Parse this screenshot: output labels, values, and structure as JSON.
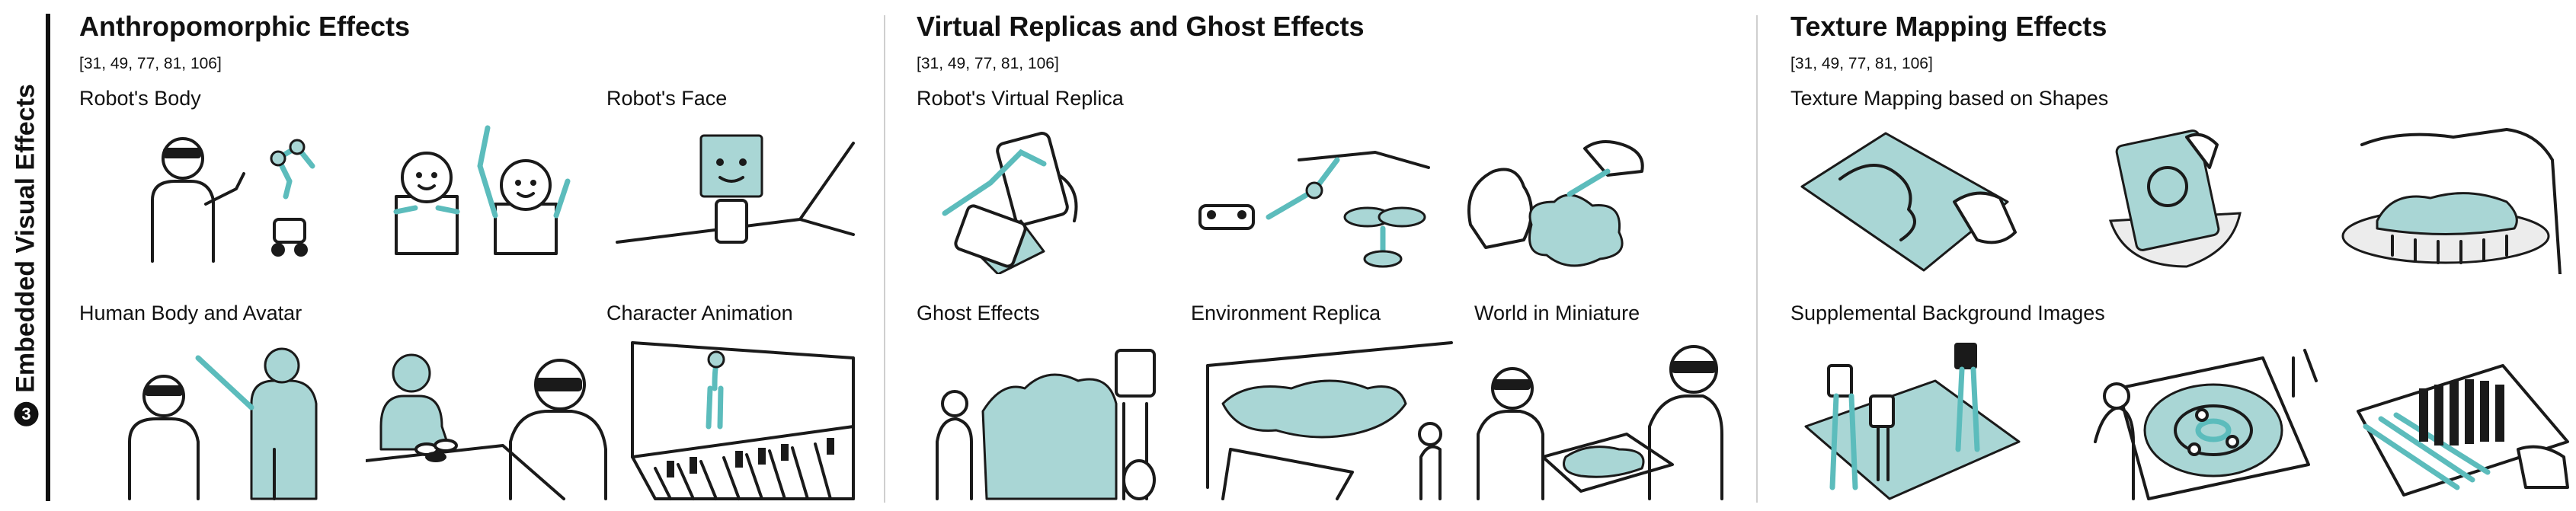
{
  "side_label": {
    "number": "3",
    "text": "Embedded Visual Effects"
  },
  "sections": [
    {
      "title": "Anthropomorphic Effects",
      "refs": "[31, 49, 77, 81, 106]",
      "captions": [
        "Robot's Body",
        "Robot's Face",
        "Human Body and Avatar",
        "Character Animation"
      ]
    },
    {
      "title": "Virtual Replicas and Ghost Effects",
      "refs": "[31, 49, 77, 81, 106]",
      "captions": [
        "Robot's Virtual Replica",
        "Ghost Effects",
        "Environment Replica",
        "World in Miniature"
      ]
    },
    {
      "title": "Texture Mapping Effects",
      "refs": "[31, 49, 77, 81, 106]",
      "captions": [
        "Texture Mapping based on Shapes",
        "Supplemental Background Images"
      ]
    }
  ],
  "colors": {
    "accent": "#5cbcbc",
    "accent_fill": "#a9d6d5",
    "ink": "#1a1a1a",
    "divider": "#cfcfcf"
  }
}
